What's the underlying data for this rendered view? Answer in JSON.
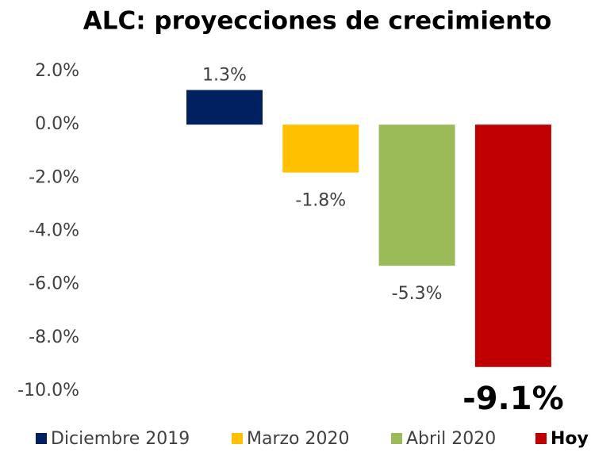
{
  "chart_data": {
    "type": "bar",
    "title": "ALC: proyecciones de crecimiento",
    "series": [
      {
        "name": "Diciembre 2019",
        "color": "#002060",
        "values": [
          1.3
        ],
        "value_labels": [
          "1.3%"
        ]
      },
      {
        "name": "Marzo 2020",
        "color": "#ffc000",
        "values": [
          -1.8
        ],
        "value_labels": [
          "-1.8%"
        ]
      },
      {
        "name": "Abril 2020",
        "color": "#9bbb59",
        "values": [
          -5.3
        ],
        "value_labels": [
          "-5.3%"
        ]
      },
      {
        "name": "Hoy",
        "color": "#c00000",
        "values": [
          -9.1
        ],
        "value_labels": [
          "-9.1%"
        ]
      }
    ],
    "ylim": [
      -10,
      2
    ],
    "yticks": [
      {
        "value": 2,
        "label": "2.0%"
      },
      {
        "value": 0,
        "label": "0.0%"
      },
      {
        "value": -2,
        "label": "-2.0%"
      },
      {
        "value": -4,
        "label": "-4.0%"
      },
      {
        "value": -6,
        "label": "-6.0%"
      },
      {
        "value": -8,
        "label": "-8.0%"
      },
      {
        "value": -10,
        "label": "-10.0%"
      }
    ],
    "legend": "bottom"
  }
}
